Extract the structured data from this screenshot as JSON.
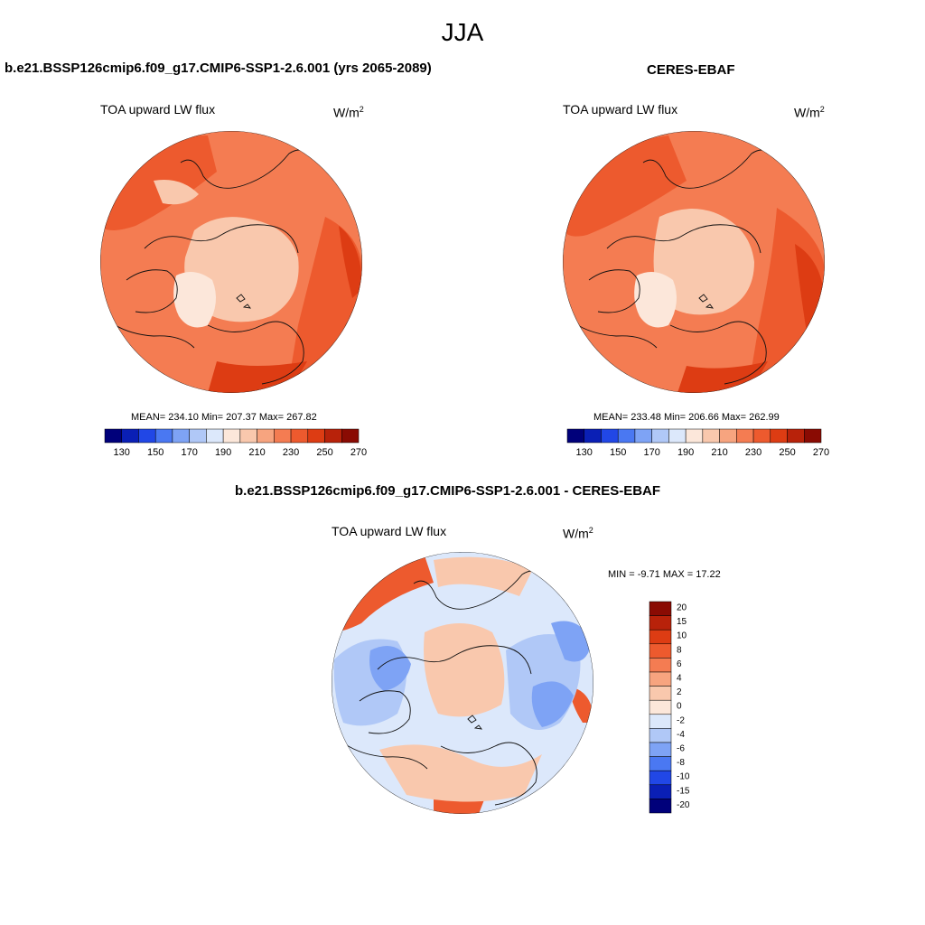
{
  "season": "JJA",
  "panels": [
    {
      "title": "b.e21.BSSP126cmip6.f09_g17.CMIP6-SSP1-2.6.001 (yrs 2065-2089)",
      "variable": "TOA upward LW flux",
      "units_base": "W/m",
      "units_exp": "2",
      "stats": "MEAN= 234.10  Min= 207.37  Max= 267.82"
    },
    {
      "title": "CERES-EBAF",
      "variable": "TOA upward LW flux",
      "units_base": "W/m",
      "units_exp": "2",
      "stats": "MEAN= 233.48  Min= 206.66  Max= 262.99"
    },
    {
      "title": "b.e21.BSSP126cmip6.f09_g17.CMIP6-SSP1-2.6.001 - CERES-EBAF",
      "variable": "TOA upward LW flux",
      "units_base": "W/m",
      "units_exp": "2",
      "stats": "MIN =  -9.71 MAX =  17.22"
    }
  ],
  "colorbar_abs": {
    "tick_labels": [
      "130",
      "150",
      "170",
      "190",
      "210",
      "230",
      "250",
      "270"
    ],
    "colors": [
      "#00007a",
      "#0a1fb5",
      "#2147e6",
      "#4a78f2",
      "#7ea3f5",
      "#b0c8f7",
      "#dce8fb",
      "#fce7da",
      "#f9c8ad",
      "#f7a47f",
      "#f47c52",
      "#ed5a2e",
      "#dd3c13",
      "#b8220a",
      "#8a0b03"
    ]
  },
  "colorbar_diff": {
    "tick_labels": [
      "20",
      "15",
      "10",
      "8",
      "6",
      "4",
      "2",
      "0",
      "-2",
      "-4",
      "-6",
      "-8",
      "-10",
      "-15",
      "-20"
    ],
    "colors": [
      "#8a0b03",
      "#b8220a",
      "#dd3c13",
      "#ed5a2e",
      "#f47c52",
      "#f7a47f",
      "#f9c8ad",
      "#fce7da",
      "#dce8fb",
      "#b0c8f7",
      "#7ea3f5",
      "#4a78f2",
      "#2147e6",
      "#0a1fb5",
      "#00007a"
    ]
  },
  "map_colors": {
    "abs_background": "#f47c52",
    "abs_warm": "#ed5a2e",
    "abs_hot": "#dd3c13",
    "abs_cool": "#f9c8ad",
    "abs_cold": "#fce7da",
    "diff_background": "#dce8fb",
    "diff_cool": "#b0c8f7",
    "diff_cold": "#7ea3f5",
    "diff_warm": "#f9c8ad",
    "diff_hot": "#ed5a2e"
  }
}
